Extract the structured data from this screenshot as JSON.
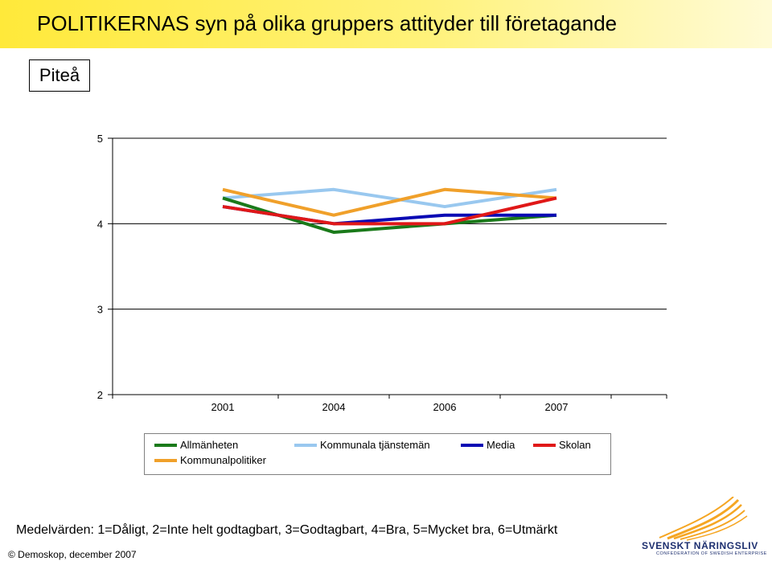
{
  "title": "POLITIKERNAS syn på olika gruppers attityder till företagande",
  "region": "Piteå",
  "chart_data": {
    "type": "line",
    "categories": [
      "2001",
      "2004",
      "2006",
      "2007"
    ],
    "ylim": [
      2,
      5
    ],
    "yticks": [
      2,
      3,
      4,
      5
    ],
    "grid": true,
    "legend_position": "bottom",
    "series": [
      {
        "name": "Allmänheten",
        "color": "#1a7a1a",
        "values": [
          4.3,
          3.9,
          4.0,
          4.1
        ]
      },
      {
        "name": "Kommunala tjänstemän",
        "color": "#99c8ef",
        "values": [
          4.3,
          4.4,
          4.2,
          4.4
        ]
      },
      {
        "name": "Media",
        "color": "#0a0ab4",
        "values": [
          4.2,
          4.0,
          4.1,
          4.1
        ]
      },
      {
        "name": "Skolan",
        "color": "#e01818",
        "values": [
          4.2,
          4.0,
          4.0,
          4.3
        ]
      },
      {
        "name": "Kommunalpolitiker",
        "color": "#f0a02a",
        "values": [
          4.4,
          4.1,
          4.4,
          4.3
        ]
      }
    ]
  },
  "footnote": "Medelvärden: 1=Dåligt, 2=Inte helt godtagbart, 3=Godtagbart, 4=Bra, 5=Mycket bra, 6=Utmärkt",
  "copyright": "© Demoskop, december 2007",
  "logo": {
    "name": "SVENSKT NÄRINGSLIV",
    "subtitle": "CONFEDERATION OF SWEDISH ENTERPRISE",
    "color": "#1d2f6f",
    "accent": "#f5a623"
  }
}
